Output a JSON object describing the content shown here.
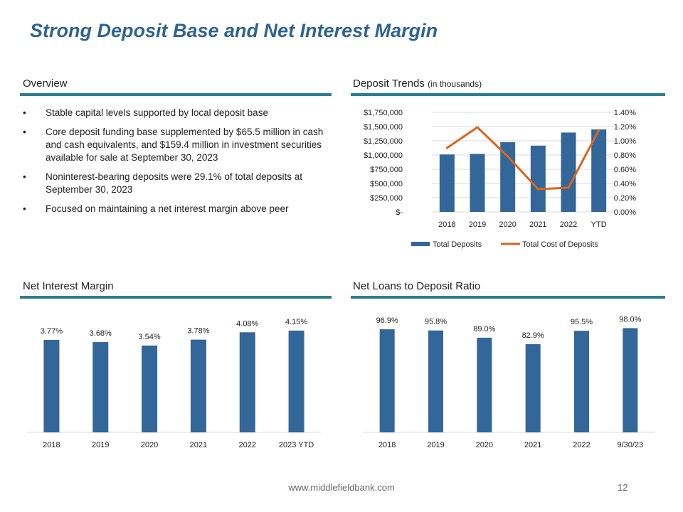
{
  "title": "Strong Deposit Base and Net Interest Margin",
  "overview": {
    "heading": "Overview",
    "bullets": [
      "Stable capital levels supported by local deposit base",
      "Core deposit funding base supplemented by $65.5 million in cash and cash equivalents, and $159.4 million in investment securities available for sale at September 30, 2023",
      "Noninterest-bearing deposits were 29.1% of total deposits at September 30, 2023",
      "Focused on maintaining a net interest margin above peer"
    ]
  },
  "deposit_heading": {
    "main": "Deposit Trends",
    "sub": "(in thousands)"
  },
  "nim_heading": "Net Interest Margin",
  "ltd_heading": "Net Loans to Deposit Ratio",
  "footer": {
    "url": "www.middlefieldbank.com",
    "page": "12"
  },
  "colors": {
    "bar": "#336699",
    "line": "#d9661f",
    "accent": "#2b7f8c",
    "title": "#2f6390"
  },
  "chart_data": [
    {
      "id": "deposit_trends",
      "type": "bar",
      "categories": [
        "2018",
        "2019",
        "2020",
        "2021",
        "2022",
        "YTD"
      ],
      "series": [
        {
          "name": "Total Deposits",
          "type": "bar",
          "axis": "left",
          "values": [
            1010000,
            1020000,
            1225000,
            1165000,
            1395000,
            1450000
          ]
        },
        {
          "name": "Total Cost of Deposits",
          "type": "line",
          "axis": "right",
          "values": [
            0.9,
            1.19,
            0.78,
            0.32,
            0.34,
            1.15
          ]
        }
      ],
      "left_axis": {
        "ticks": [
          "$-",
          "$250,000",
          "$500,000",
          "$750,000",
          "$1,000,000",
          "$1,250,000",
          "$1,500,000",
          "$1,750,000"
        ],
        "range": [
          0,
          1750000
        ]
      },
      "right_axis": {
        "ticks": [
          "0.00%",
          "0.20%",
          "0.40%",
          "0.60%",
          "0.80%",
          "1.00%",
          "1.20%",
          "1.40%"
        ],
        "range": [
          0,
          1.4
        ]
      },
      "grid": true,
      "legend": "bottom"
    },
    {
      "id": "net_interest_margin",
      "type": "bar",
      "categories": [
        "2018",
        "2019",
        "2020",
        "2021",
        "2022",
        "2023 YTD"
      ],
      "values": [
        3.77,
        3.68,
        3.54,
        3.78,
        4.08,
        4.15
      ],
      "labels": [
        "3.77%",
        "3.68%",
        "3.54%",
        "3.78%",
        "4.08%",
        "4.15%"
      ],
      "ylim": [
        0,
        4.9
      ]
    },
    {
      "id": "net_loans_to_deposit",
      "type": "bar",
      "categories": [
        "2018",
        "2019",
        "2020",
        "2021",
        "2022",
        "9/30/23"
      ],
      "values": [
        96.9,
        95.8,
        89.0,
        82.9,
        95.5,
        98.0
      ],
      "labels": [
        "96.9%",
        "95.8%",
        "89.0%",
        "82.9%",
        "95.5%",
        "98.0%"
      ],
      "ylim": [
        0,
        113
      ]
    }
  ]
}
